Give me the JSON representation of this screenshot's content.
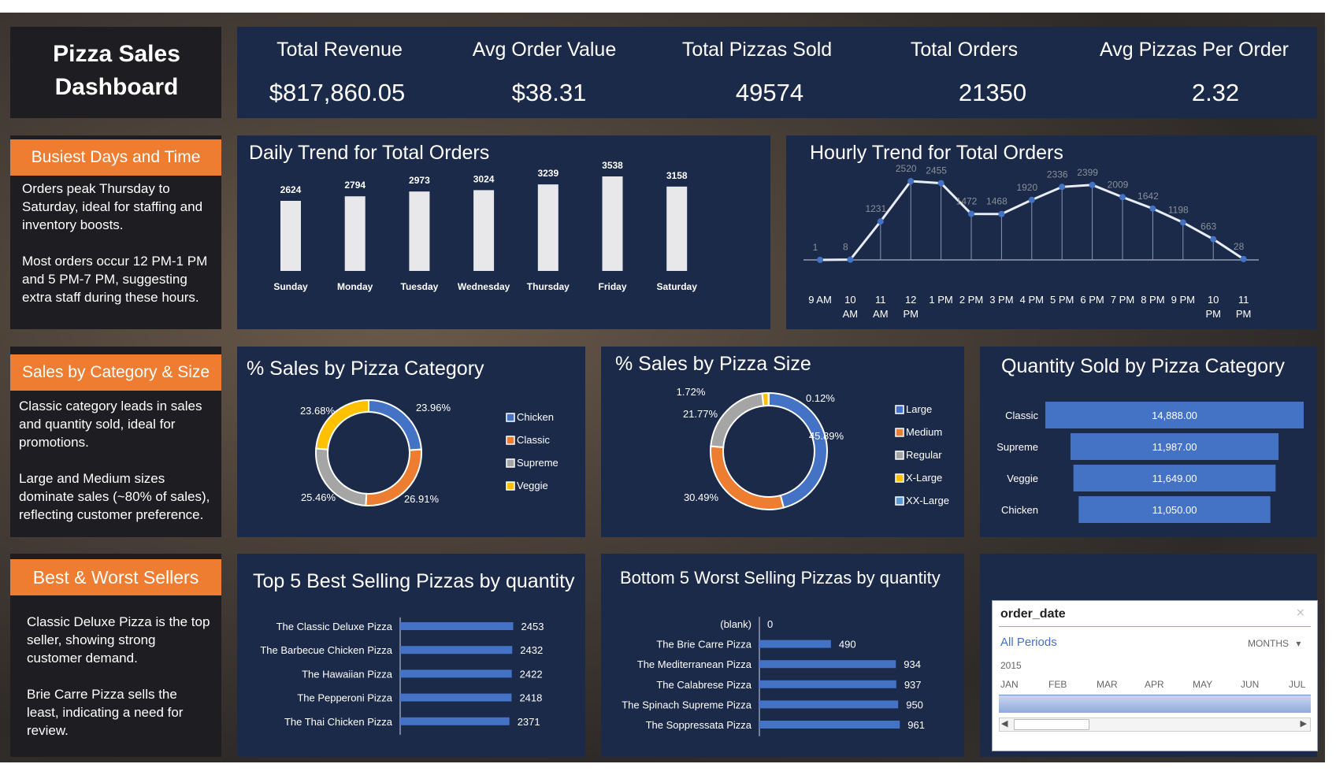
{
  "dashboard_title": "Pizza Sales Dashboard",
  "kpis": [
    {
      "label": "Total Revenue",
      "value": "$817,860.05"
    },
    {
      "label": "Avg Order Value",
      "value": "$38.31"
    },
    {
      "label": "Total Pizzas Sold",
      "value": "49574"
    },
    {
      "label": "Total Orders",
      "value": "21350"
    },
    {
      "label": "Avg Pizzas Per Order",
      "value": "2.32"
    }
  ],
  "sections": {
    "busiest": {
      "title": "Busiest Days and Time",
      "p1": "Orders peak Thursday to Saturday, ideal for staffing and inventory boosts.",
      "p2": "Most orders occur 12 PM-1 PM and 5 PM-7 PM, suggesting extra staff during these hours."
    },
    "category": {
      "title": "Sales by Category & Size",
      "p1": "Classic category leads in sales and quantity sold, ideal for promotions.",
      "p2": "Large and Medium sizes dominate sales (~80% of sales), reflecting customer preference."
    },
    "sellers": {
      "title": "Best & Worst Sellers",
      "p1": "Classic Deluxe Pizza is the top seller, showing strong customer demand.",
      "p2": "Brie Carre Pizza sells the least, indicating a need for review."
    }
  },
  "colors": {
    "panel": "#1c2a4a",
    "accent": "#ef7d31",
    "bar_blue": "#4472c4",
    "bar_white": "#e8e8ea"
  },
  "chart_data": [
    {
      "type": "bar",
      "title": "Daily Trend for Total Orders",
      "categories": [
        "Sunday",
        "Monday",
        "Tuesday",
        "Wednesday",
        "Thursday",
        "Friday",
        "Saturday"
      ],
      "values": [
        2624,
        2794,
        2973,
        3024,
        3239,
        3538,
        3158
      ]
    },
    {
      "type": "line",
      "title": "Hourly Trend for Total Orders",
      "categories": [
        "9 AM",
        "10 AM",
        "11 AM",
        "12 PM",
        "1 PM",
        "2 PM",
        "3 PM",
        "4 PM",
        "5 PM",
        "6 PM",
        "7 PM",
        "8 PM",
        "9 PM",
        "10 PM",
        "11 PM"
      ],
      "values": [
        1,
        8,
        1231,
        2520,
        2455,
        1472,
        1468,
        1920,
        2336,
        2399,
        2009,
        1642,
        1198,
        663,
        28
      ]
    },
    {
      "type": "pie",
      "title": "% Sales by Pizza Category",
      "labels": [
        "Chicken",
        "Classic",
        "Supreme",
        "Veggie"
      ],
      "values": [
        23.96,
        26.91,
        25.46,
        23.68
      ],
      "value_labels": [
        "23.96%",
        "26.91%",
        "25.46%",
        "23.68%"
      ],
      "colors": [
        "#4472c4",
        "#ed7d31",
        "#a5a5a5",
        "#ffc000"
      ]
    },
    {
      "type": "pie",
      "title": "% Sales by Pizza Size",
      "labels": [
        "Large",
        "Medium",
        "Regular",
        "X-Large",
        "XX-Large"
      ],
      "values": [
        45.89,
        30.49,
        21.77,
        1.72,
        0.12
      ],
      "value_labels": [
        "45.89%",
        "30.49%",
        "21.77%",
        "1.72%",
        "0.12%"
      ],
      "colors": [
        "#4472c4",
        "#ed7d31",
        "#a5a5a5",
        "#ffc000",
        "#5b9bd5"
      ]
    },
    {
      "type": "bar",
      "title": "Quantity Sold by Pizza Category",
      "categories": [
        "Classic",
        "Supreme",
        "Veggie",
        "Chicken"
      ],
      "values": [
        14888,
        11987,
        11649,
        11050
      ],
      "value_labels": [
        "14,888.00",
        "11,987.00",
        "11,649.00",
        "11,050.00"
      ]
    },
    {
      "type": "bar",
      "title": "Top 5 Best Selling Pizzas by quantity",
      "categories": [
        "The Classic Deluxe Pizza",
        "The Barbecue Chicken Pizza",
        "The Hawaiian Pizza",
        "The Pepperoni Pizza",
        "The Thai Chicken Pizza"
      ],
      "values": [
        2453,
        2432,
        2422,
        2418,
        2371
      ]
    },
    {
      "type": "bar",
      "title": "Bottom 5 Worst Selling Pizzas by quantity",
      "categories": [
        "(blank)",
        "The Brie Carre Pizza",
        "The Mediterranean Pizza",
        "The Calabrese Pizza",
        "The Spinach Supreme Pizza",
        "The Soppressata Pizza"
      ],
      "values": [
        0,
        490,
        934,
        937,
        950,
        961
      ]
    }
  ],
  "slicer": {
    "field": "order_date",
    "selection": "All Periods",
    "level": "MONTHS",
    "year": "2015",
    "months": [
      "JAN",
      "FEB",
      "MAR",
      "APR",
      "MAY",
      "JUN",
      "JUL"
    ]
  }
}
